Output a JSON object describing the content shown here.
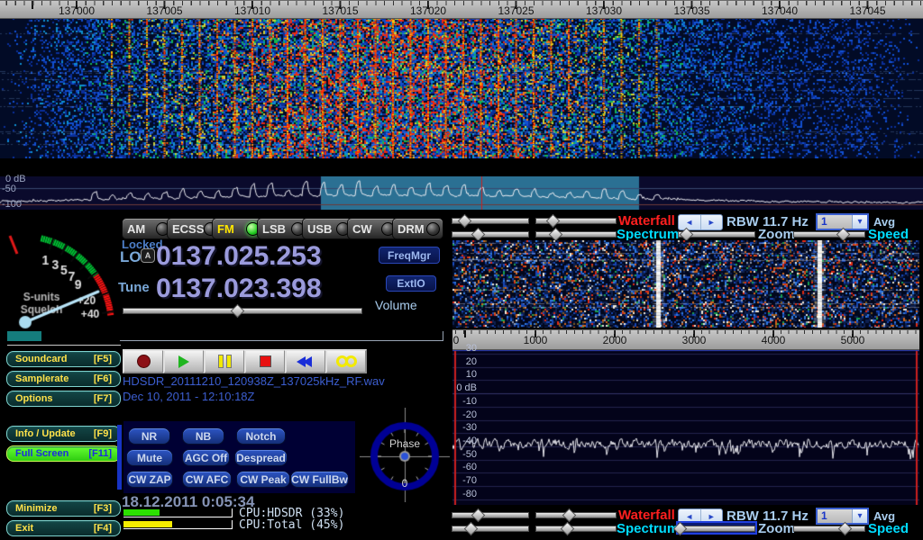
{
  "main_scale": {
    "labels": [
      "137000",
      "137005",
      "137010",
      "137015",
      "137020",
      "137025",
      "137030",
      "137035",
      "137040",
      "137045"
    ]
  },
  "main_spectrum": {
    "db_labels": [
      "0 dB",
      "-50",
      "-100"
    ]
  },
  "smeter": {
    "tick_labels": [
      "1",
      "3",
      "5",
      "7",
      "9",
      "+20",
      "+40"
    ],
    "units_label": "S-units",
    "squelch_label": "Squelch"
  },
  "modes": {
    "buttons": [
      "AM",
      "ECSS",
      "FM",
      "LSB",
      "USB",
      "CW",
      "DRM"
    ],
    "active": "FM"
  },
  "tuning": {
    "locked": "Locked",
    "lo_label": "LO",
    "lo_badge": "A",
    "lo_value": "0137.025.253",
    "tune_label": "Tune",
    "tune_value": "0137.023.398",
    "freqmgr": "FreqMgr",
    "extio": "ExtIO",
    "volume_label": "Volume"
  },
  "left_menu": {
    "buttons": [
      {
        "label": "Soundcard",
        "key": "[F5]"
      },
      {
        "label": "Samplerate",
        "key": "[F6]"
      },
      {
        "label": "Options",
        "key": "[F7]"
      },
      {
        "label": "Info / Update",
        "key": "[F9]"
      },
      {
        "label": "Full Screen",
        "key": "[F11]"
      },
      {
        "label": "Minimize",
        "key": "[F3]"
      },
      {
        "label": "Exit",
        "key": "[F4]"
      }
    ],
    "active": "Full Screen"
  },
  "recording": {
    "filename": "HDSDR_20111210_120938Z_137025kHz_RF.wav",
    "timestamp": "Dec 10, 2011 - 12:10:18Z",
    "transport_icons": [
      "record",
      "play",
      "pause",
      "stop",
      "rewind",
      "loop"
    ]
  },
  "dsp": {
    "buttons": [
      "NR",
      "NB",
      "Notch",
      "Mute",
      "AGC Off",
      "Despread",
      "CW ZAP",
      "CW AFC",
      "CW Peak",
      "CW FullBw"
    ]
  },
  "phase": {
    "label": "Phase",
    "value": "0"
  },
  "status": {
    "datetime": "18.12.2011 0:05:34",
    "cpu_hdsdr": {
      "label": "CPU:HDSDR (33%)",
      "percent": 33
    },
    "cpu_total": {
      "label": "CPU:Total (45%)",
      "percent": 45
    }
  },
  "display_top": {
    "waterfall": "Waterfall",
    "spectrum": "Spectrum",
    "rbw": "RBW 11.7 Hz",
    "zoom": "Zoom",
    "speed": "Speed",
    "avg": "Avg",
    "avg_value": "1"
  },
  "display_bottom": {
    "waterfall": "Waterfall",
    "spectrum": "Spectrum",
    "rbw": "RBW 11.7 Hz",
    "zoom": "Zoom",
    "speed": "Speed",
    "avg": "Avg",
    "avg_value": "1"
  },
  "audio_scale": {
    "labels": [
      "0",
      "1000",
      "2000",
      "3000",
      "4000",
      "5000"
    ]
  },
  "audio_spectrum": {
    "db_labels": [
      "30",
      "20",
      "10",
      "0 dB",
      "-10",
      "-20",
      "-30",
      "-40",
      "-50",
      "-60",
      "-70",
      "-80"
    ]
  },
  "colors": {
    "waterfall_label": "#ff1f1f",
    "spectrum_label": "#00dcff",
    "pale_blue": "#a9cdee",
    "digits": "#9b9bdc",
    "menu_yellow": "#ffe24a",
    "fullscreen_green": "#3fe01f",
    "cpu_green": "#2ce000",
    "cpu_yellow": "#f6ed00",
    "selection": "#2b7093",
    "filename_blue": "#3c5ed0"
  }
}
